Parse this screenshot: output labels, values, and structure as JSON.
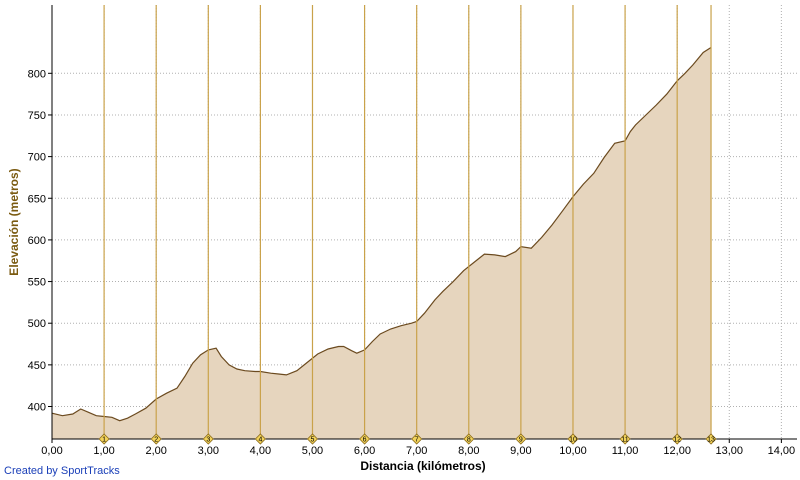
{
  "chart_data": {
    "type": "area",
    "title": "",
    "xlabel": "Distancia (kilómetros)",
    "ylabel": "Elevación (metros)",
    "xlim": [
      0,
      14.3
    ],
    "ylim": [
      361,
      882
    ],
    "x_ticks": [
      0,
      1,
      2,
      3,
      4,
      5,
      6,
      7,
      8,
      9,
      10,
      11,
      12,
      13,
      14
    ],
    "x_tick_labels": [
      "0,00",
      "1,00",
      "2,00",
      "3,00",
      "4,00",
      "5,00",
      "6,00",
      "7,00",
      "8,00",
      "9,00",
      "10,00",
      "11,00",
      "12,00",
      "13,00",
      "14,00"
    ],
    "y_ticks": [
      400,
      450,
      500,
      550,
      600,
      650,
      700,
      750,
      800
    ],
    "y_tick_labels": [
      "400",
      "450",
      "500",
      "550",
      "600",
      "650",
      "700",
      "750",
      "800"
    ],
    "km_markers": [
      1,
      2,
      3,
      4,
      5,
      6,
      7,
      8,
      9,
      10,
      11,
      12,
      13
    ],
    "km_marker_positions": [
      1,
      2,
      3,
      4,
      5,
      6,
      7,
      8,
      9,
      10,
      11,
      12,
      12.65
    ],
    "grid": true,
    "colors": {
      "fill": "#e6d5be",
      "line": "#6b4a1f",
      "marker_line": "#c9a24a",
      "marker_badge": "#f2d25a",
      "y_label": "#7a5a10"
    },
    "series": [
      {
        "x": [
          0,
          0.2,
          0.4,
          0.55,
          0.7,
          0.85,
          1.0,
          1.15,
          1.3,
          1.45,
          1.6,
          1.8,
          2.0,
          2.2,
          2.4,
          2.55,
          2.7,
          2.85,
          3.0,
          3.15,
          3.25,
          3.4,
          3.55,
          3.7,
          3.9,
          4.0,
          4.2,
          4.35,
          4.5,
          4.7,
          4.9,
          5.1,
          5.3,
          5.5,
          5.6,
          5.75,
          5.85,
          6.0,
          6.15,
          6.3,
          6.5,
          6.7,
          6.9,
          7.0,
          7.15,
          7.35,
          7.5,
          7.7,
          7.9,
          8.1,
          8.3,
          8.5,
          8.7,
          8.9,
          9.0,
          9.2,
          9.4,
          9.6,
          9.8,
          10.0,
          10.2,
          10.4,
          10.6,
          10.8,
          11.0,
          11.1,
          11.2,
          11.4,
          11.6,
          11.8,
          12.0,
          12.15,
          12.3,
          12.5,
          12.65
        ],
        "y": [
          392,
          389,
          391,
          397,
          393,
          389,
          388,
          387,
          383,
          386,
          391,
          398,
          409,
          416,
          422,
          436,
          452,
          462,
          468,
          470,
          460,
          450,
          445,
          443,
          442,
          442,
          440,
          439,
          438,
          443,
          453,
          463,
          469,
          472,
          472,
          467,
          464,
          468,
          478,
          487,
          493,
          497,
          500,
          502,
          512,
          528,
          538,
          550,
          563,
          573,
          583,
          582,
          580,
          586,
          592,
          590,
          603,
          618,
          635,
          652,
          667,
          680,
          699,
          716,
          719,
          730,
          738,
          750,
          762,
          775,
          791,
          800,
          810,
          825,
          831
        ]
      }
    ]
  },
  "credit": "Created by SportTracks"
}
